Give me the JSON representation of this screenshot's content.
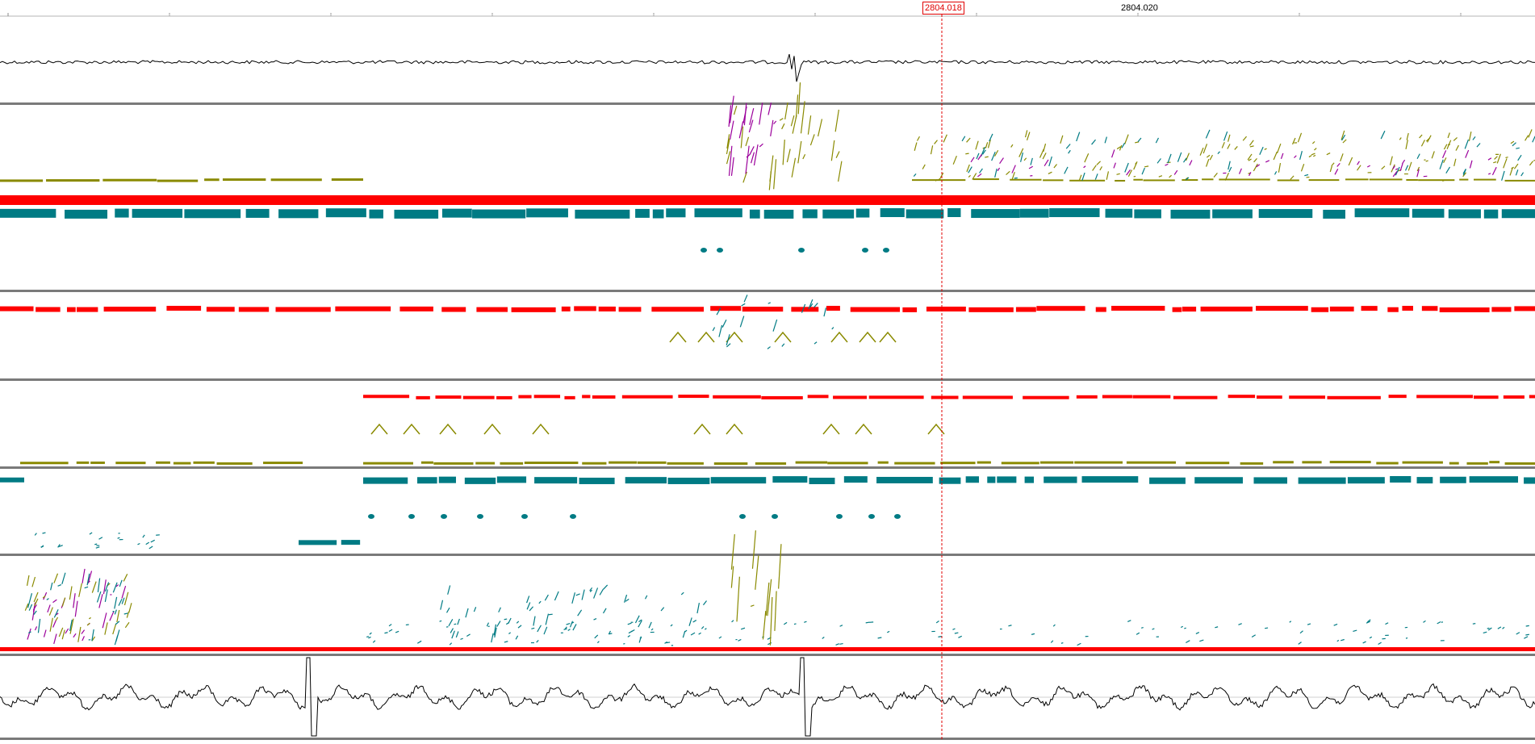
{
  "app": {
    "cursor_label": "2804.018",
    "tick_labels": [
      "2804.020"
    ]
  },
  "colors": {
    "red": "#ff0000",
    "teal": "#007b84",
    "olive": "#8a8a00",
    "purple": "#9b009b",
    "cursor": "#e00000",
    "trace": "#000000",
    "separator": "#7a7a7a"
  },
  "tracks": [
    {
      "kind": "waveform"
    },
    {
      "kind": "spectrogram"
    },
    {
      "kind": "spectrogram"
    },
    {
      "kind": "spectrogram"
    },
    {
      "kind": "spectrogram"
    },
    {
      "kind": "spectrogram"
    },
    {
      "kind": "spectrogram"
    },
    {
      "kind": "waveform"
    }
  ]
}
